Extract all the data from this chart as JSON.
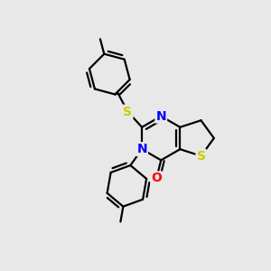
{
  "background_color": "#e8e8e8",
  "bond_color": "#000000",
  "atom_colors": {
    "S": "#cccc00",
    "N": "#0000ff",
    "O": "#ff0000",
    "C": "#000000"
  },
  "bond_width": 1.6,
  "font_size_atoms": 10
}
